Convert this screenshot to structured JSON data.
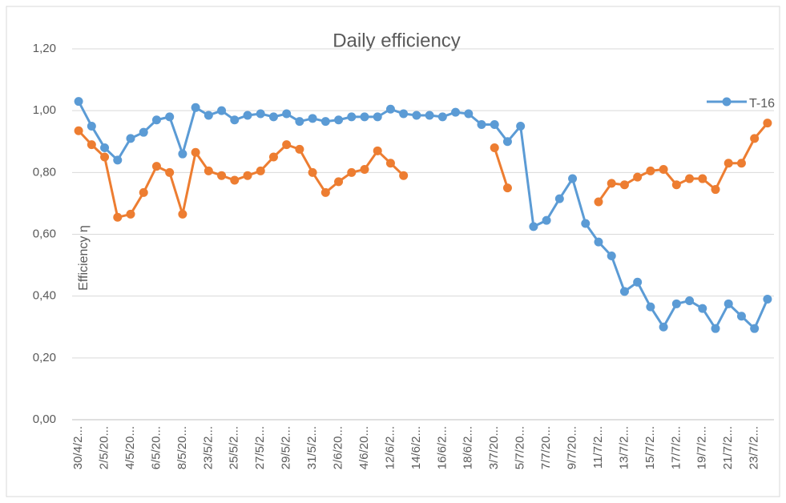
{
  "chart_data": {
    "type": "line",
    "title": "Daily efficiency",
    "y_label": "Efficiency η",
    "categories": [
      "30/4/2...",
      null,
      "2/5/20...",
      null,
      "4/5/20...",
      null,
      "6/5/20...",
      null,
      "8/5/20...",
      null,
      "23/5/2...",
      null,
      "25/5/2...",
      null,
      "27/5/2...",
      null,
      "29/5/2...",
      null,
      "31/5/2...",
      null,
      "2/6/20...",
      null,
      "4/6/20...",
      null,
      "12/6/2...",
      null,
      "14/6/2...",
      null,
      "16/6/2...",
      null,
      "18/6/2...",
      null,
      "3/7/20...",
      null,
      "5/7/20...",
      null,
      "7/7/20...",
      null,
      "9/7/20...",
      null,
      "11/7/2...",
      null,
      "13/7/2...",
      null,
      "15/7/2...",
      null,
      "17/7/2...",
      null,
      "19/7/2...",
      null,
      "21/7/2...",
      null,
      "23/7/2...",
      null
    ],
    "series": [
      {
        "name": "T-16",
        "color": "#5b9bd5",
        "values": [
          1.03,
          0.95,
          0.88,
          0.84,
          0.91,
          0.93,
          0.97,
          0.98,
          0.86,
          1.01,
          0.985,
          1.0,
          0.97,
          0.985,
          0.99,
          0.98,
          0.99,
          0.965,
          0.975,
          0.965,
          0.97,
          0.98,
          0.98,
          0.98,
          1.005,
          0.99,
          0.985,
          0.985,
          0.98,
          0.995,
          0.99,
          0.955,
          0.955,
          0.9,
          0.95,
          0.625,
          0.645,
          0.715,
          0.78,
          0.635,
          0.575,
          0.53,
          0.415,
          0.445,
          0.365,
          0.3,
          0.375,
          0.385,
          0.36,
          0.295,
          0.375,
          0.335,
          0.295,
          0.39
        ]
      },
      {
        "color": "#ed7d31",
        "values": [
          0.935,
          0.89,
          0.85,
          0.655,
          0.665,
          0.735,
          0.82,
          0.8,
          0.665,
          0.865,
          0.805,
          0.79,
          0.775,
          0.79,
          0.805,
          0.85,
          0.89,
          0.875,
          0.8,
          0.735,
          0.77,
          0.8,
          0.81,
          0.87,
          0.83,
          0.79,
          null,
          null,
          null,
          null,
          null,
          null,
          0.88,
          0.75,
          null,
          null,
          null,
          null,
          null,
          null,
          0.705,
          0.765,
          0.76,
          0.785,
          0.805,
          0.81,
          0.76,
          0.78,
          0.78,
          0.745,
          0.83,
          0.83,
          0.91,
          0.96
        ]
      }
    ],
    "ylim": [
      0,
      1.2
    ],
    "yticks": [
      {
        "value": 0,
        "label": "0,00"
      },
      {
        "value": 0.2,
        "label": "0,20"
      },
      {
        "value": 0.4,
        "label": "0,40"
      },
      {
        "value": 0.6,
        "label": "0,60"
      },
      {
        "value": 0.8,
        "label": "0,80"
      },
      {
        "value": 1.0,
        "label": "1,00"
      },
      {
        "value": 1.2,
        "label": "1,20"
      }
    ],
    "grid": true,
    "legend": "top-right"
  }
}
